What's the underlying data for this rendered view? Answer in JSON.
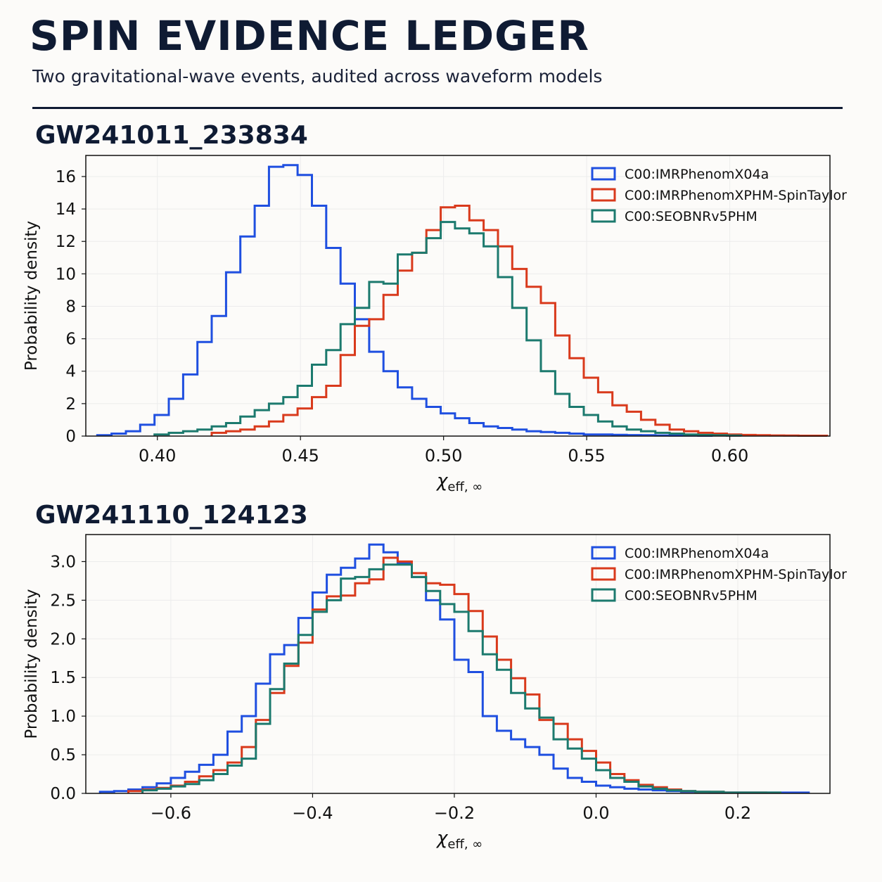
{
  "header": {
    "title": "SPIN EVIDENCE LEDGER",
    "subtitle": "Two gravitational-wave events, audited across waveform models"
  },
  "colors": {
    "C00:IMRPhenomX04a": "#1f4fe0",
    "C00:IMRPhenomXPHM-SpinTaylor": "#d93a1c",
    "C00:SEOBNRv5PHM": "#1c7a6e"
  },
  "chart_data": [
    {
      "type": "step-histogram",
      "title": "GW241011_233834",
      "xlabel": "χ",
      "xlabel_sub": "eff, ∞",
      "ylabel": "Probability density",
      "xlim": [
        0.375,
        0.635
      ],
      "ylim": [
        0,
        17.3
      ],
      "xticks": [
        0.4,
        0.45,
        0.5,
        0.55,
        0.6
      ],
      "xtick_labels": [
        "0.40",
        "0.45",
        "0.50",
        "0.55",
        "0.60"
      ],
      "yticks": [
        0,
        2,
        4,
        6,
        8,
        10,
        12,
        14,
        16
      ],
      "ytick_labels": [
        "0",
        "2",
        "4",
        "6",
        "8",
        "10",
        "12",
        "14",
        "16"
      ],
      "grid": true,
      "legend": "top-right",
      "series": [
        {
          "name": "C00:IMRPhenomX04a",
          "bin_edges": [
            0.379,
            0.384,
            0.389,
            0.394,
            0.399,
            0.404,
            0.409,
            0.414,
            0.419,
            0.424,
            0.429,
            0.434,
            0.439,
            0.444,
            0.449,
            0.454,
            0.459,
            0.464,
            0.469,
            0.474,
            0.479,
            0.484,
            0.489,
            0.494,
            0.499,
            0.504,
            0.509,
            0.514,
            0.519,
            0.524,
            0.529,
            0.534,
            0.539,
            0.544,
            0.549,
            0.554,
            0.559,
            0.564,
            0.569,
            0.574,
            0.579,
            0.584,
            0.589,
            0.594
          ],
          "values": [
            0.05,
            0.15,
            0.3,
            0.7,
            1.3,
            2.3,
            3.8,
            5.8,
            7.4,
            10.1,
            12.3,
            14.2,
            16.6,
            16.7,
            16.1,
            14.2,
            11.6,
            9.4,
            7.2,
            5.2,
            4.0,
            3.0,
            2.3,
            1.8,
            1.4,
            1.1,
            0.8,
            0.6,
            0.5,
            0.4,
            0.3,
            0.25,
            0.2,
            0.15,
            0.1,
            0.1,
            0.08,
            0.06,
            0.05,
            0.04,
            0.03,
            0.03,
            0.02
          ]
        },
        {
          "name": "C00:IMRPhenomXPHM-SpinTaylor",
          "bin_edges": [
            0.419,
            0.424,
            0.429,
            0.434,
            0.439,
            0.444,
            0.449,
            0.454,
            0.459,
            0.464,
            0.469,
            0.474,
            0.479,
            0.484,
            0.489,
            0.494,
            0.499,
            0.504,
            0.509,
            0.514,
            0.519,
            0.524,
            0.529,
            0.534,
            0.539,
            0.544,
            0.549,
            0.554,
            0.559,
            0.564,
            0.569,
            0.574,
            0.579,
            0.584,
            0.589,
            0.594,
            0.599,
            0.604,
            0.609,
            0.614,
            0.619,
            0.624,
            0.629,
            0.634
          ],
          "values": [
            0.2,
            0.3,
            0.4,
            0.6,
            0.9,
            1.3,
            1.7,
            2.4,
            3.1,
            5.0,
            6.8,
            7.2,
            8.7,
            10.2,
            11.3,
            12.7,
            14.1,
            14.2,
            13.3,
            12.7,
            11.7,
            10.3,
            9.2,
            8.2,
            6.2,
            4.8,
            3.6,
            2.7,
            1.9,
            1.5,
            1.0,
            0.7,
            0.4,
            0.3,
            0.2,
            0.15,
            0.1,
            0.07,
            0.05,
            0.04,
            0.03,
            0.02,
            0.02
          ]
        },
        {
          "name": "C00:SEOBNRv5PHM",
          "bin_edges": [
            0.399,
            0.404,
            0.409,
            0.414,
            0.419,
            0.424,
            0.429,
            0.434,
            0.439,
            0.444,
            0.449,
            0.454,
            0.459,
            0.464,
            0.469,
            0.474,
            0.479,
            0.484,
            0.489,
            0.494,
            0.499,
            0.504,
            0.509,
            0.514,
            0.519,
            0.524,
            0.529,
            0.534,
            0.539,
            0.544,
            0.549,
            0.554,
            0.559,
            0.564,
            0.569,
            0.574,
            0.579,
            0.584,
            0.589,
            0.594,
            0.599,
            0.604
          ],
          "values": [
            0.1,
            0.2,
            0.3,
            0.4,
            0.6,
            0.8,
            1.2,
            1.6,
            2.0,
            2.4,
            3.1,
            4.4,
            5.3,
            6.9,
            7.9,
            9.5,
            9.4,
            11.2,
            11.3,
            12.2,
            13.2,
            12.8,
            12.5,
            11.7,
            9.8,
            7.9,
            5.9,
            4.0,
            2.6,
            1.8,
            1.3,
            0.9,
            0.6,
            0.4,
            0.3,
            0.2,
            0.15,
            0.1,
            0.07,
            0.05,
            0.03
          ]
        }
      ]
    },
    {
      "type": "step-histogram",
      "title": "GW241110_124123",
      "xlabel": "χ",
      "xlabel_sub": "eff, ∞",
      "ylabel": "Probability density",
      "xlim": [
        -0.72,
        0.33
      ],
      "ylim": [
        0,
        3.35
      ],
      "xticks": [
        -0.6,
        -0.4,
        -0.2,
        0.0,
        0.2
      ],
      "xtick_labels": [
        "−0.6",
        "−0.4",
        "−0.2",
        "0.0",
        "0.2"
      ],
      "yticks": [
        0.0,
        0.5,
        1.0,
        1.5,
        2.0,
        2.5,
        3.0
      ],
      "ytick_labels": [
        "0.0",
        "0.5",
        "1.0",
        "1.5",
        "2.0",
        "2.5",
        "3.0"
      ],
      "grid": true,
      "legend": "top-right",
      "series": [
        {
          "name": "C00:IMRPhenomX04a",
          "bin_edges": [
            -0.7,
            -0.68,
            -0.66,
            -0.64,
            -0.62,
            -0.6,
            -0.58,
            -0.56,
            -0.54,
            -0.52,
            -0.5,
            -0.48,
            -0.46,
            -0.44,
            -0.42,
            -0.4,
            -0.38,
            -0.36,
            -0.34,
            -0.32,
            -0.3,
            -0.28,
            -0.26,
            -0.24,
            -0.22,
            -0.2,
            -0.18,
            -0.16,
            -0.14,
            -0.12,
            -0.1,
            -0.08,
            -0.06,
            -0.04,
            -0.02,
            0.0,
            0.02,
            0.04,
            0.06,
            0.08,
            0.1,
            0.12,
            0.14,
            0.16,
            0.18,
            0.2,
            0.22,
            0.24,
            0.26,
            0.28,
            0.3
          ],
          "values": [
            0.02,
            0.03,
            0.05,
            0.08,
            0.13,
            0.2,
            0.28,
            0.37,
            0.5,
            0.8,
            1.0,
            1.42,
            1.8,
            1.92,
            2.27,
            2.6,
            2.83,
            2.92,
            3.04,
            3.22,
            3.12,
            2.98,
            2.8,
            2.5,
            2.25,
            1.73,
            1.57,
            1.0,
            0.81,
            0.7,
            0.6,
            0.5,
            0.32,
            0.2,
            0.15,
            0.1,
            0.08,
            0.06,
            0.05,
            0.04,
            0.03,
            0.02,
            0.02,
            0.01,
            0.01,
            0.01,
            0.01,
            0.01,
            0.01,
            0.01
          ]
        },
        {
          "name": "C00:IMRPhenomXPHM-SpinTaylor",
          "bin_edges": [
            -0.66,
            -0.64,
            -0.62,
            -0.6,
            -0.58,
            -0.56,
            -0.54,
            -0.52,
            -0.5,
            -0.48,
            -0.46,
            -0.44,
            -0.42,
            -0.4,
            -0.38,
            -0.36,
            -0.34,
            -0.32,
            -0.3,
            -0.28,
            -0.26,
            -0.24,
            -0.22,
            -0.2,
            -0.18,
            -0.16,
            -0.14,
            -0.12,
            -0.1,
            -0.08,
            -0.06,
            -0.04,
            -0.02,
            0.0,
            0.02,
            0.04,
            0.06,
            0.08,
            0.1,
            0.12,
            0.14,
            0.16,
            0.18,
            0.2,
            0.22,
            0.24
          ],
          "values": [
            0.03,
            0.05,
            0.07,
            0.1,
            0.15,
            0.22,
            0.3,
            0.4,
            0.6,
            0.95,
            1.3,
            1.65,
            1.95,
            2.38,
            2.55,
            2.56,
            2.72,
            2.77,
            3.05,
            3.0,
            2.85,
            2.72,
            2.7,
            2.58,
            2.36,
            2.03,
            1.73,
            1.49,
            1.28,
            0.95,
            0.9,
            0.7,
            0.55,
            0.4,
            0.25,
            0.17,
            0.11,
            0.08,
            0.05,
            0.03,
            0.02,
            0.02,
            0.01,
            0.01,
            0.01
          ]
        },
        {
          "name": "C00:SEOBNRv5PHM",
          "bin_edges": [
            -0.64,
            -0.62,
            -0.6,
            -0.58,
            -0.56,
            -0.54,
            -0.52,
            -0.5,
            -0.48,
            -0.46,
            -0.44,
            -0.42,
            -0.4,
            -0.38,
            -0.36,
            -0.34,
            -0.32,
            -0.3,
            -0.28,
            -0.26,
            -0.24,
            -0.22,
            -0.2,
            -0.18,
            -0.16,
            -0.14,
            -0.12,
            -0.1,
            -0.08,
            -0.06,
            -0.04,
            -0.02,
            0.0,
            0.02,
            0.04,
            0.06,
            0.08,
            0.1,
            0.12,
            0.14,
            0.16,
            0.18,
            0.2,
            0.22,
            0.24,
            0.26
          ],
          "values": [
            0.04,
            0.06,
            0.09,
            0.12,
            0.17,
            0.25,
            0.36,
            0.45,
            0.9,
            1.35,
            1.68,
            2.05,
            2.35,
            2.5,
            2.78,
            2.8,
            2.9,
            2.96,
            2.96,
            2.8,
            2.62,
            2.45,
            2.35,
            2.1,
            1.8,
            1.6,
            1.3,
            1.1,
            0.98,
            0.7,
            0.58,
            0.45,
            0.3,
            0.2,
            0.15,
            0.09,
            0.06,
            0.04,
            0.03,
            0.02,
            0.02,
            0.01,
            0.01,
            0.01,
            0.01
          ]
        }
      ]
    }
  ]
}
